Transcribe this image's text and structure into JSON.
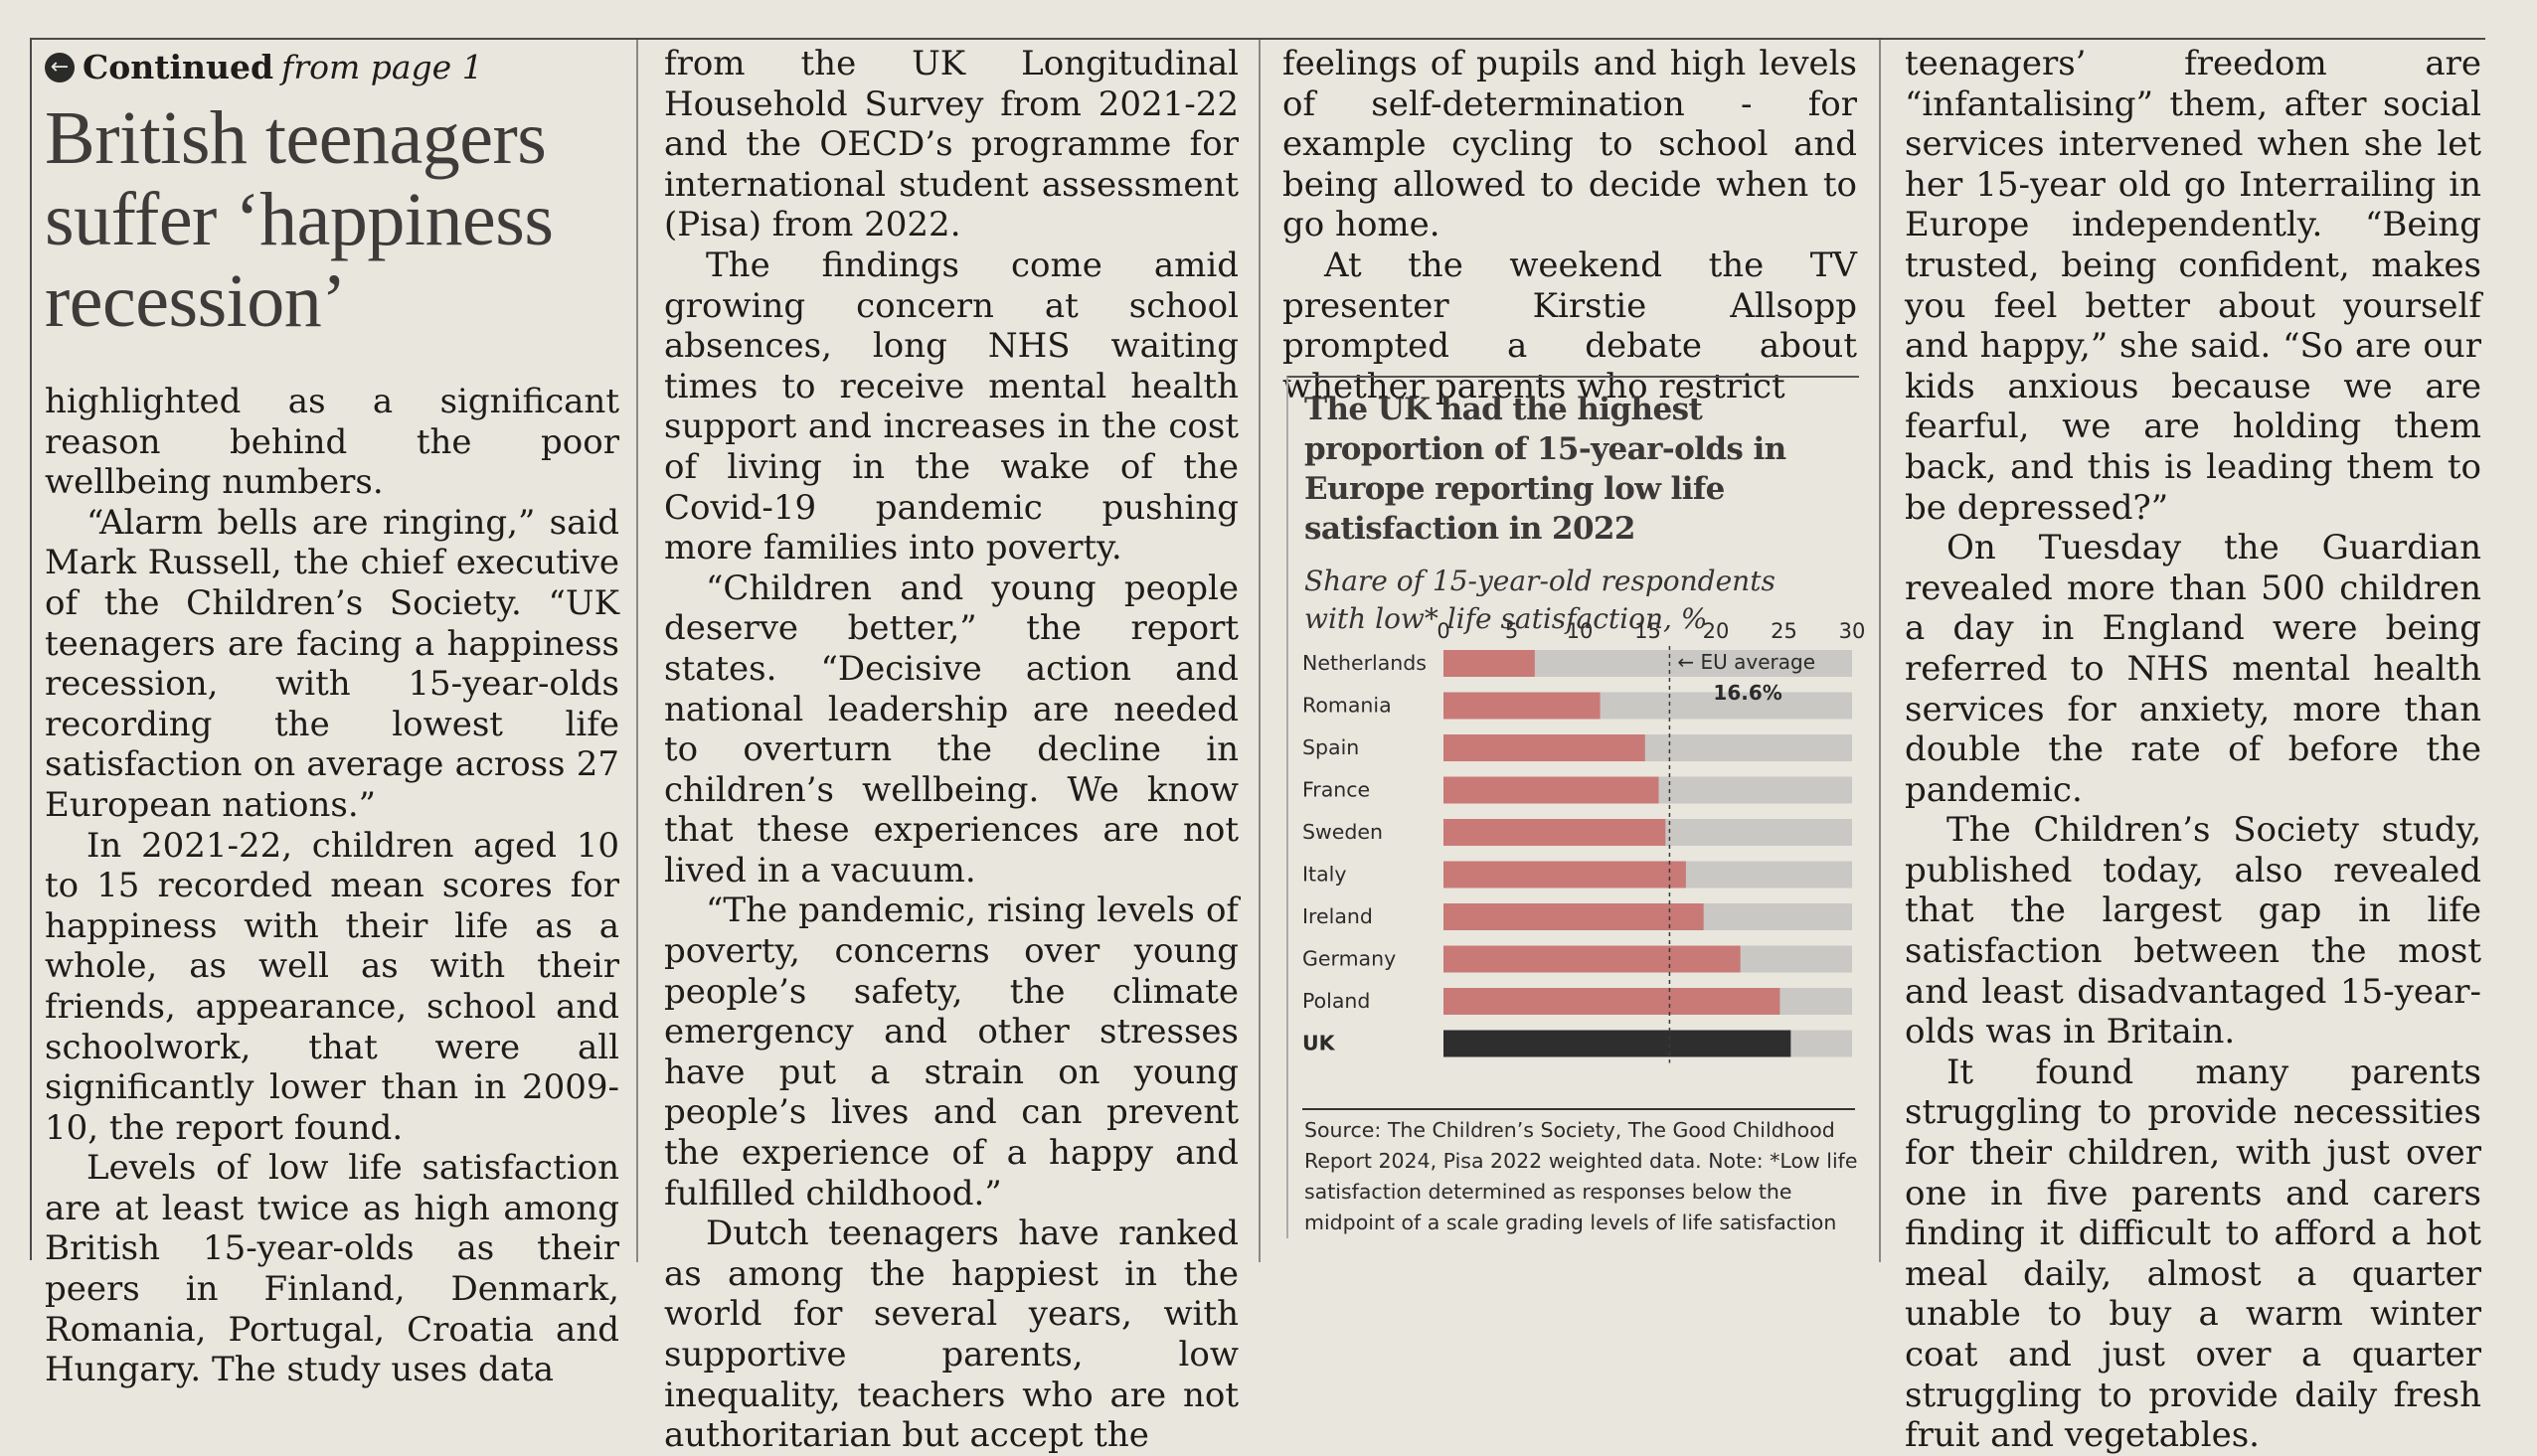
{
  "header": {
    "continued_label": "Continued",
    "continued_from": "from page 1",
    "arrow_icon": "left-arrow-circle-icon"
  },
  "article": {
    "headline_lines": [
      "British teenagers",
      "suffer ‘happiness",
      "recession’"
    ],
    "col1_paragraphs": [
      "highlighted as a significant reason behind the poor wellbeing numbers.",
      "“Alarm bells are ringing,” said Mark Russell, the chief executive of the Children’s Society. “UK teenagers are facing a happiness recession, with 15-year-olds recording the lowest life satisfaction on average across 27 European nations.”",
      "In 2021-22, children aged 10 to 15 recorded mean scores for happiness with their life as a whole, as well as with their friends, appearance, school and schoolwork, that were all significantly lower than in 2009-10, the report found.",
      "Levels of low life satisfaction are at least twice as high among British 15-year-olds as their peers in Finland, Denmark, Romania, Portugal, Croatia and Hungary. The study uses data"
    ],
    "col2_paragraphs": [
      "from the UK Longitudinal Household Survey from 2021-22 and the OECD’s programme for international student assessment (Pisa) from 2022.",
      "The findings come amid growing concern at school absences, long NHS waiting times to receive mental health support and increases in the cost of living in the wake of the Covid-19 pandemic pushing more families into poverty.",
      "“Children and young people deserve better,” the report states. “Decisive action and national leadership are needed to overturn the decline in children’s wellbeing. We know that these experiences are not lived in a vacuum.",
      "“The pandemic, rising levels of poverty, concerns over young people’s safety, the climate emergency and other stresses have put a strain on young people’s lives and can prevent the experience of a happy and fulfilled childhood.”",
      "Dutch teenagers have ranked as among the happiest in the world for several years, with supportive parents, low inequality, teachers who are not authoritarian but accept the"
    ],
    "col3_paragraphs": [
      "feelings of pupils and high levels of self-determination - for example cycling to school and being allowed to decide when to go home.",
      "At the weekend the TV presenter Kirstie Allsopp prompted a debate about whether parents who restrict"
    ],
    "col4_paragraphs": [
      "teenagers’ freedom are “infantalising” them, after social services intervened when she let her 15-year old go Interrailing in Europe independently. “Being trusted, being confident, makes you feel better about yourself and happy,” she said. “So are our kids anxious because we are fearful, we are holding them back, and this is leading them to be depressed?”",
      "On Tuesday the Guardian revealed more than 500 children a day in England were being referred to NHS mental health services for anxiety, more than double the rate of before the pandemic.",
      "The Children’s Society study, published today, also revealed that the largest gap in life satisfaction between the most and least disadvantaged 15-year-olds was in Britain.",
      "It found many parents struggling to provide necessities for their children, with just over one in five parents and carers finding it difficult to afford a hot meal daily, almost a quarter unable to buy a warm winter coat and just over a quarter struggling to provide daily fresh fruit and vegetables."
    ]
  },
  "chart_data": {
    "type": "bar",
    "orientation": "horizontal",
    "title": "The UK had the highest proportion of 15-year-olds in Europe reporting low life satisfaction in 2022",
    "subtitle": "Share of 15-year-old respondents with low* life satisfaction, %",
    "categories": [
      "Netherlands",
      "Romania",
      "Spain",
      "France",
      "Sweden",
      "Italy",
      "Ireland",
      "Germany",
      "Poland",
      "UK"
    ],
    "values": [
      6.7,
      11.5,
      14.8,
      15.8,
      16.3,
      17.8,
      19.1,
      21.8,
      24.7,
      25.5
    ],
    "xlim": [
      0,
      30
    ],
    "xticks": [
      0,
      5,
      10,
      15,
      20,
      25,
      30
    ],
    "reference_line": {
      "value": 16.6,
      "label": "EU average",
      "value_label": "16.6%"
    },
    "highlight_category": "UK",
    "colors": {
      "bar": "#c97a77",
      "highlight": "#2f2e2e",
      "track": "#c9c8c5",
      "label": "#2b2b2b"
    },
    "source": "Source: The Children’s Society, The Good Childhood Report 2024, Pisa 2022 weighted data. Note: *Low life satisfaction determined as responses below the midpoint of a scale grading levels of life satisfaction"
  }
}
